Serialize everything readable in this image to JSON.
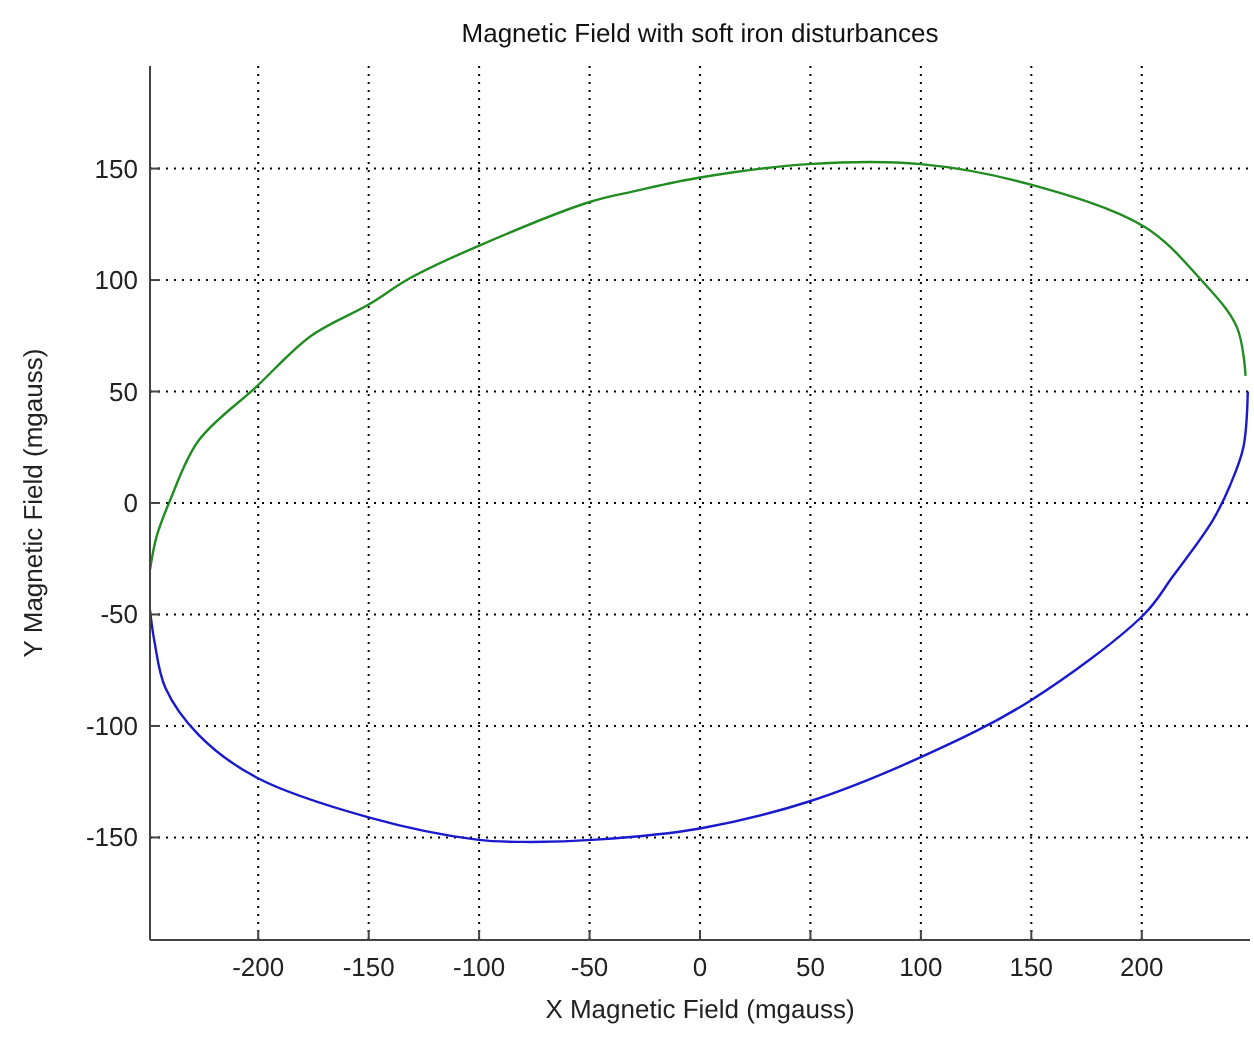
{
  "chart_data": {
    "type": "line",
    "title": "Magnetic Field with soft iron disturbances",
    "xlabel": "X Magnetic Field (mgauss)",
    "ylabel": "Y Magnetic Field (mgauss)",
    "xlim": [
      -249,
      249
    ],
    "ylim": [
      -196,
      196
    ],
    "xticks": [
      -200,
      -150,
      -100,
      -50,
      0,
      50,
      100,
      150,
      200
    ],
    "yticks": [
      -150,
      -100,
      -50,
      0,
      50,
      100,
      150
    ],
    "grid": true,
    "series": [
      {
        "color": "#218c21",
        "x": [
          -249,
          -246,
          -240,
          -227,
          -201,
          -176,
          -150,
          -131,
          -101,
          -50,
          -29,
          0,
          49,
          100,
          149,
          201,
          226,
          243,
          247
        ],
        "values": [
          -30,
          -15,
          1,
          28,
          52,
          75,
          89,
          101,
          115,
          135,
          140,
          146,
          152,
          152,
          143,
          124,
          101,
          79,
          57
        ]
      },
      {
        "color": "#1a1acc",
        "x": [
          -249,
          -247,
          -242,
          -227,
          -201,
          -150,
          -101,
          -80,
          -47,
          0,
          49,
          100,
          149,
          201,
          214,
          232,
          240,
          246,
          248
        ],
        "values": [
          -48,
          -62,
          -83,
          -104,
          -123,
          -141,
          -151,
          -152,
          -151,
          -146,
          -134,
          -114,
          -89,
          -50,
          -33,
          -8,
          8,
          25,
          50
        ]
      }
    ]
  }
}
